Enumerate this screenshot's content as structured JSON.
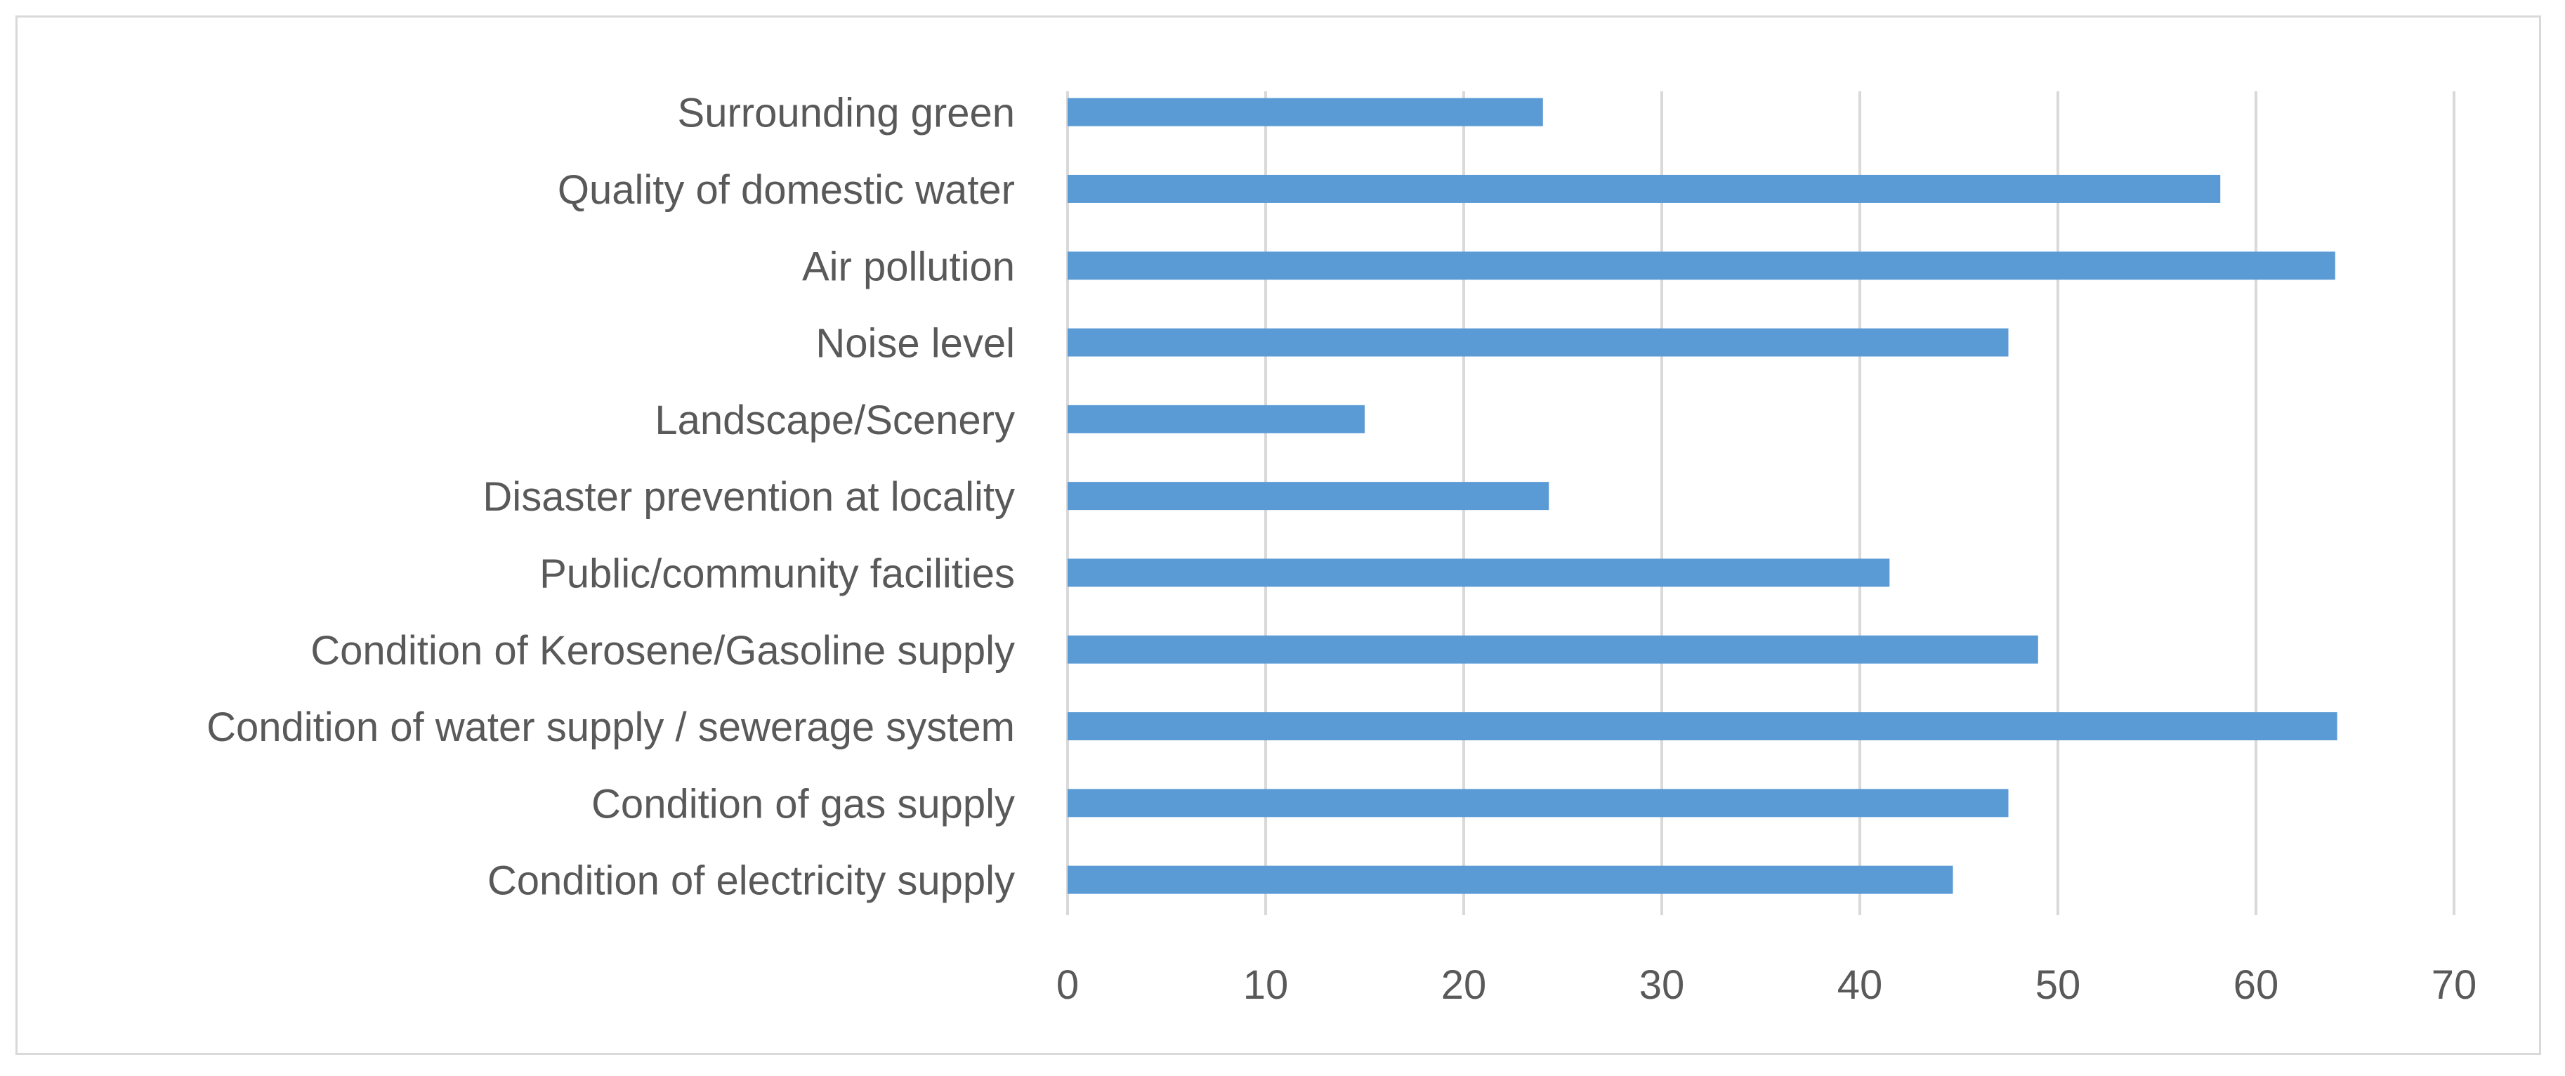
{
  "chart_data": {
    "type": "bar",
    "orientation": "horizontal",
    "categories": [
      "Surrounding green",
      "Quality of domestic water",
      "Air pollution",
      "Noise level",
      "Landscape/Scenery",
      "Disaster prevention at locality",
      "Public/community facilities",
      "Condition of Kerosene/Gasoline supply",
      "Condition of water supply / sewerage system",
      "Condition of gas supply",
      "Condition of electricity supply"
    ],
    "values": [
      24,
      58.2,
      64,
      47.5,
      15,
      24.3,
      41.5,
      49,
      64.1,
      47.5,
      44.7
    ],
    "xticks": [
      "0",
      "10",
      "20",
      "30",
      "40",
      "50",
      "60",
      "70"
    ],
    "xlim": [
      0,
      70
    ],
    "grid": true,
    "bar_color": "#5b9bd5",
    "grid_color": "#d9d9d9",
    "text_color": "#595959"
  }
}
